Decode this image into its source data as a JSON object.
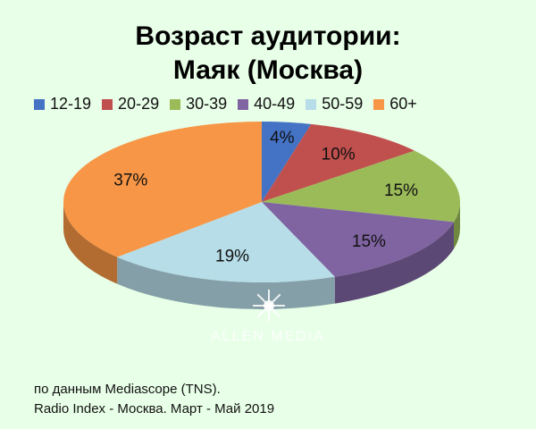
{
  "title_line1": "Возраст аудитории:",
  "title_line2": "Маяк (Москва)",
  "watermark": "ALLEN MEDIA",
  "source_line1": "по данным Mediascope (TNS).",
  "source_line2": "Radio Index - Москва. Март - Май 2019",
  "chart_data": {
    "type": "pie",
    "title": "Возраст аудитории: Маяк (Москва)",
    "legend_position": "top",
    "categories": [
      "12-19",
      "20-29",
      "30-39",
      "40-49",
      "50-59",
      "60+"
    ],
    "values": [
      4,
      10,
      15,
      15,
      19,
      37
    ],
    "labels": [
      "4%",
      "10%",
      "15%",
      "15%",
      "19%",
      "37%"
    ],
    "colors": [
      "#4472c4",
      "#c0504d",
      "#9bbb59",
      "#8064a2",
      "#b7dde8",
      "#f79646"
    ]
  }
}
